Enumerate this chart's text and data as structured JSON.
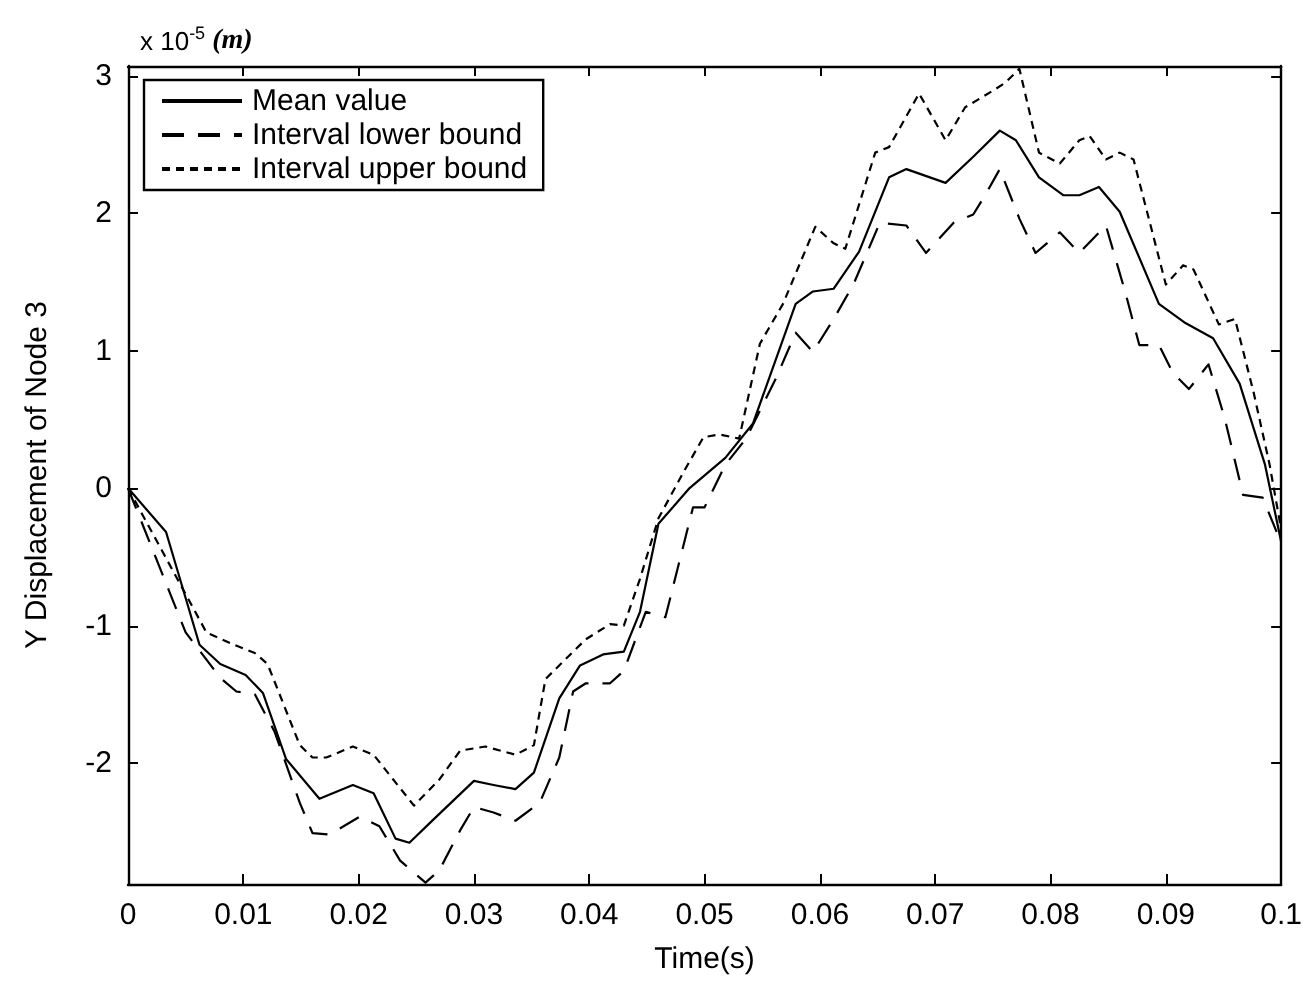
{
  "chart_data": {
    "type": "line",
    "xlabel": "Time(s)",
    "ylabel": "Y Displacement of Node 3",
    "annotations": [
      "x 10$^{-5}$ (m)"
    ],
    "xlim": [
      0,
      0.1
    ],
    "ylim": [
      -2.88,
      3.07
    ],
    "xticks": [
      0,
      0.01,
      0.02,
      0.03,
      0.04,
      0.05,
      0.06,
      0.07,
      0.08,
      0.09,
      0.1
    ],
    "yticks": [
      -2,
      -1,
      0,
      1,
      2,
      3
    ],
    "grid": false,
    "legend": "top left",
    "marker": "none",
    "series": [
      {
        "name": "Mean value",
        "color": "#000000",
        "line_style": "solid",
        "x": [
          0,
          0.0033,
          0.0062,
          0.008,
          0.0102,
          0.0117,
          0.0137,
          0.0166,
          0.0195,
          0.0213,
          0.0232,
          0.0244,
          0.0265,
          0.03,
          0.0317,
          0.0336,
          0.0352,
          0.0374,
          0.0392,
          0.0412,
          0.043,
          0.0444,
          0.046,
          0.0487,
          0.0518,
          0.0542,
          0.0579,
          0.0594,
          0.0612,
          0.0634,
          0.066,
          0.0675,
          0.0709,
          0.0733,
          0.0756,
          0.077,
          0.079,
          0.0811,
          0.0825,
          0.0842,
          0.086,
          0.0894,
          0.0917,
          0.0941,
          0.0964,
          0.0986,
          0.1
        ],
        "values": [
          0,
          -0.32,
          -1.14,
          -1.28,
          -1.36,
          -1.49,
          -1.97,
          -2.26,
          -2.16,
          -2.22,
          -2.55,
          -2.58,
          -2.41,
          -2.13,
          -2.16,
          -2.19,
          -2.07,
          -1.53,
          -1.29,
          -1.21,
          -1.19,
          -0.9,
          -0.26,
          0,
          0.22,
          0.47,
          1.34,
          1.43,
          1.45,
          1.72,
          2.26,
          2.32,
          2.22,
          2.41,
          2.6,
          2.53,
          2.26,
          2.13,
          2.13,
          2.19,
          2.01,
          1.34,
          1.2,
          1.09,
          0.76,
          0.17,
          -0.39
        ]
      },
      {
        "name": "Interval lower bound",
        "color": "#000000",
        "line_style": "dashed",
        "x": [
          0,
          0.005,
          0.008,
          0.0094,
          0.011,
          0.0127,
          0.0149,
          0.016,
          0.0175,
          0.0201,
          0.0218,
          0.0236,
          0.0258,
          0.027,
          0.0288,
          0.03,
          0.0317,
          0.0336,
          0.0357,
          0.0374,
          0.0386,
          0.0397,
          0.0418,
          0.043,
          0.0449,
          0.0466,
          0.049,
          0.05,
          0.0518,
          0.0536,
          0.0562,
          0.0579,
          0.0594,
          0.0612,
          0.0629,
          0.0652,
          0.0675,
          0.0692,
          0.0716,
          0.0733,
          0.0744,
          0.0756,
          0.0773,
          0.0787,
          0.0808,
          0.0825,
          0.0848,
          0.0865,
          0.0877,
          0.0894,
          0.0906,
          0.092,
          0.0937,
          0.0951,
          0.0967,
          0.0984,
          0.1
        ],
        "values": [
          0,
          -1.05,
          -1.38,
          -1.48,
          -1.5,
          -1.77,
          -2.29,
          -2.51,
          -2.52,
          -2.39,
          -2.46,
          -2.71,
          -2.87,
          -2.78,
          -2.49,
          -2.32,
          -2.36,
          -2.42,
          -2.29,
          -1.96,
          -1.48,
          -1.42,
          -1.42,
          -1.33,
          -0.9,
          -0.94,
          -0.14,
          -0.14,
          0.17,
          0.36,
          0.8,
          1.13,
          0.99,
          1.23,
          1.48,
          1.93,
          1.91,
          1.71,
          1.93,
          1.99,
          2.14,
          2.32,
          1.96,
          1.71,
          1.86,
          1.71,
          1.91,
          1.42,
          1.04,
          1.04,
          0.84,
          0.72,
          0.9,
          0.51,
          -0.05,
          -0.07,
          -0.4
        ]
      },
      {
        "name": "Interval upper bound",
        "color": "#000000",
        "line_style": "dotted",
        "x": [
          0,
          0.0068,
          0.0092,
          0.011,
          0.0121,
          0.0149,
          0.016,
          0.0172,
          0.0195,
          0.0213,
          0.023,
          0.0248,
          0.027,
          0.0288,
          0.031,
          0.0336,
          0.0352,
          0.0362,
          0.038,
          0.0397,
          0.0418,
          0.043,
          0.0444,
          0.046,
          0.0482,
          0.0499,
          0.0513,
          0.053,
          0.0548,
          0.0568,
          0.0596,
          0.0612,
          0.0622,
          0.0648,
          0.066,
          0.0686,
          0.0709,
          0.0726,
          0.075,
          0.0761,
          0.0773,
          0.079,
          0.0808,
          0.0825,
          0.0834,
          0.0848,
          0.086,
          0.0872,
          0.09,
          0.0915,
          0.0924,
          0.0946,
          0.096,
          0.0976,
          0.099,
          0.1
        ],
        "values": [
          0,
          -1.05,
          -1.14,
          -1.2,
          -1.28,
          -1.87,
          -1.96,
          -1.96,
          -1.88,
          -1.94,
          -2.12,
          -2.31,
          -2.12,
          -1.91,
          -1.88,
          -1.94,
          -1.87,
          -1.39,
          -1.24,
          -1.1,
          -0.99,
          -1,
          -0.66,
          -0.22,
          0.12,
          0.37,
          0.39,
          0.36,
          1.05,
          1.34,
          1.9,
          1.78,
          1.74,
          2.44,
          2.48,
          2.87,
          2.53,
          2.77,
          2.89,
          2.95,
          3.05,
          2.44,
          2.36,
          2.53,
          2.56,
          2.39,
          2.44,
          2.39,
          1.48,
          1.62,
          1.59,
          1.19,
          1.23,
          0.7,
          0.17,
          -0.3
        ]
      }
    ]
  }
}
